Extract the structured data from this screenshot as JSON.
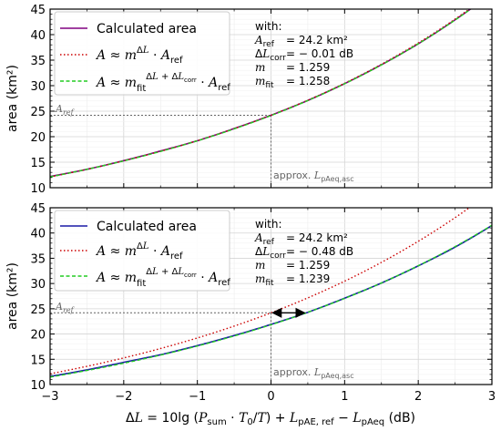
{
  "chart_data": [
    {
      "type": "line",
      "ylabel": "area (km²)",
      "xlim": [
        -3,
        3
      ],
      "ylim": [
        10,
        45
      ],
      "yticks": [
        10,
        15,
        20,
        25,
        30,
        35,
        40,
        45
      ],
      "xticks": [
        -3,
        -2,
        -1,
        0,
        1,
        2,
        3
      ],
      "grid": true,
      "legend": "top-left",
      "legend_entries": [
        "Calculated area",
        "A ≈ m^ΔL · A_ref",
        "A ≈ m_fit^(ΔL + ΔL_corr) · A_ref"
      ],
      "with_block": {
        "title": "with:",
        "rows": [
          {
            "label": "A_ref",
            "value": "= 24.2 km²"
          },
          {
            "label": "ΔL_corr",
            "value": "= − 0.01 dB"
          },
          {
            "label": "m",
            "value": "= 1.259"
          },
          {
            "label": "m_fit",
            "value": "= 1.258"
          }
        ]
      },
      "annotations": {
        "aref_label": "A_ref",
        "approx_label": "approx. L_pAeq,asc"
      },
      "params": {
        "A_ref": 24.2,
        "dL_corr": -0.01,
        "m": 1.259,
        "m_fit": 1.258
      },
      "x": [
        -3,
        -2.5,
        -2,
        -1.5,
        -1,
        -0.5,
        0,
        0.5,
        1,
        1.5,
        2,
        2.5,
        3
      ],
      "series": [
        {
          "color": "#800080",
          "style": "solid",
          "values": [
            12.2,
            13.6,
            15.3,
            17.2,
            19.2,
            21.6,
            24.2,
            27.1,
            30.4,
            34.1,
            38.2,
            42.9,
            48.1
          ]
        },
        {
          "color": "#cc0000",
          "style": "dotted",
          "values": [
            12.1,
            13.6,
            15.3,
            17.1,
            19.2,
            21.6,
            24.2,
            27.2,
            30.5,
            34.2,
            38.4,
            43.0,
            48.3
          ]
        },
        {
          "color": "#22cc22",
          "style": "dashed",
          "values": [
            12.2,
            13.6,
            15.3,
            17.1,
            19.2,
            21.6,
            24.2,
            27.1,
            30.4,
            34.1,
            38.3,
            42.9,
            48.1
          ]
        }
      ]
    },
    {
      "type": "line",
      "ylabel": "area (km²)",
      "xlabel": "ΔL = 10lg (P_sum · T0/T) + L_pAE,ref − L_pAeq (dB)",
      "xlim": [
        -3,
        3
      ],
      "ylim": [
        10,
        45
      ],
      "yticks": [
        10,
        15,
        20,
        25,
        30,
        35,
        40,
        45
      ],
      "xticks": [
        -3,
        -2,
        -1,
        0,
        1,
        2,
        3
      ],
      "grid": true,
      "legend": "top-left",
      "legend_entries": [
        "Calculated area",
        "A ≈ m^ΔL · A_ref",
        "A ≈ m_fit^(ΔL + ΔL_corr) · A_ref"
      ],
      "with_block": {
        "title": "with:",
        "rows": [
          {
            "label": "A_ref",
            "value": "= 24.2 km²"
          },
          {
            "label": "ΔL_corr",
            "value": "= − 0.48 dB"
          },
          {
            "label": "m",
            "value": "= 1.259"
          },
          {
            "label": "m_fit",
            "value": "= 1.239"
          }
        ]
      },
      "annotations": {
        "aref_label": "A_ref",
        "approx_label": "approx. L_pAeq,asc",
        "arrow": {
          "from_x": 0,
          "to_x": 0.48,
          "y": 24.2
        }
      },
      "params": {
        "A_ref": 24.2,
        "dL_corr": -0.48,
        "m": 1.259,
        "m_fit": 1.239
      },
      "x": [
        -3,
        -2.5,
        -2,
        -1.5,
        -1,
        -0.5,
        0,
        0.5,
        1,
        1.5,
        2,
        2.5,
        3
      ],
      "series": [
        {
          "color": "#1a1aa6",
          "style": "solid",
          "values": [
            11.6,
            12.9,
            14.4,
            15.9,
            17.7,
            19.7,
            21.9,
            24.3,
            27.1,
            30.1,
            33.5,
            37.2,
            41.5
          ]
        },
        {
          "color": "#cc0000",
          "style": "dotted",
          "values": [
            12.1,
            13.6,
            15.3,
            17.1,
            19.2,
            21.6,
            24.2,
            27.2,
            30.5,
            34.2,
            38.4,
            43.0,
            48.3
          ]
        },
        {
          "color": "#22cc22",
          "style": "dashed",
          "values": [
            11.7,
            13.0,
            14.5,
            16.1,
            17.9,
            19.9,
            22.1,
            24.6,
            27.4,
            30.5,
            33.9,
            37.7,
            41.9
          ]
        }
      ]
    }
  ]
}
